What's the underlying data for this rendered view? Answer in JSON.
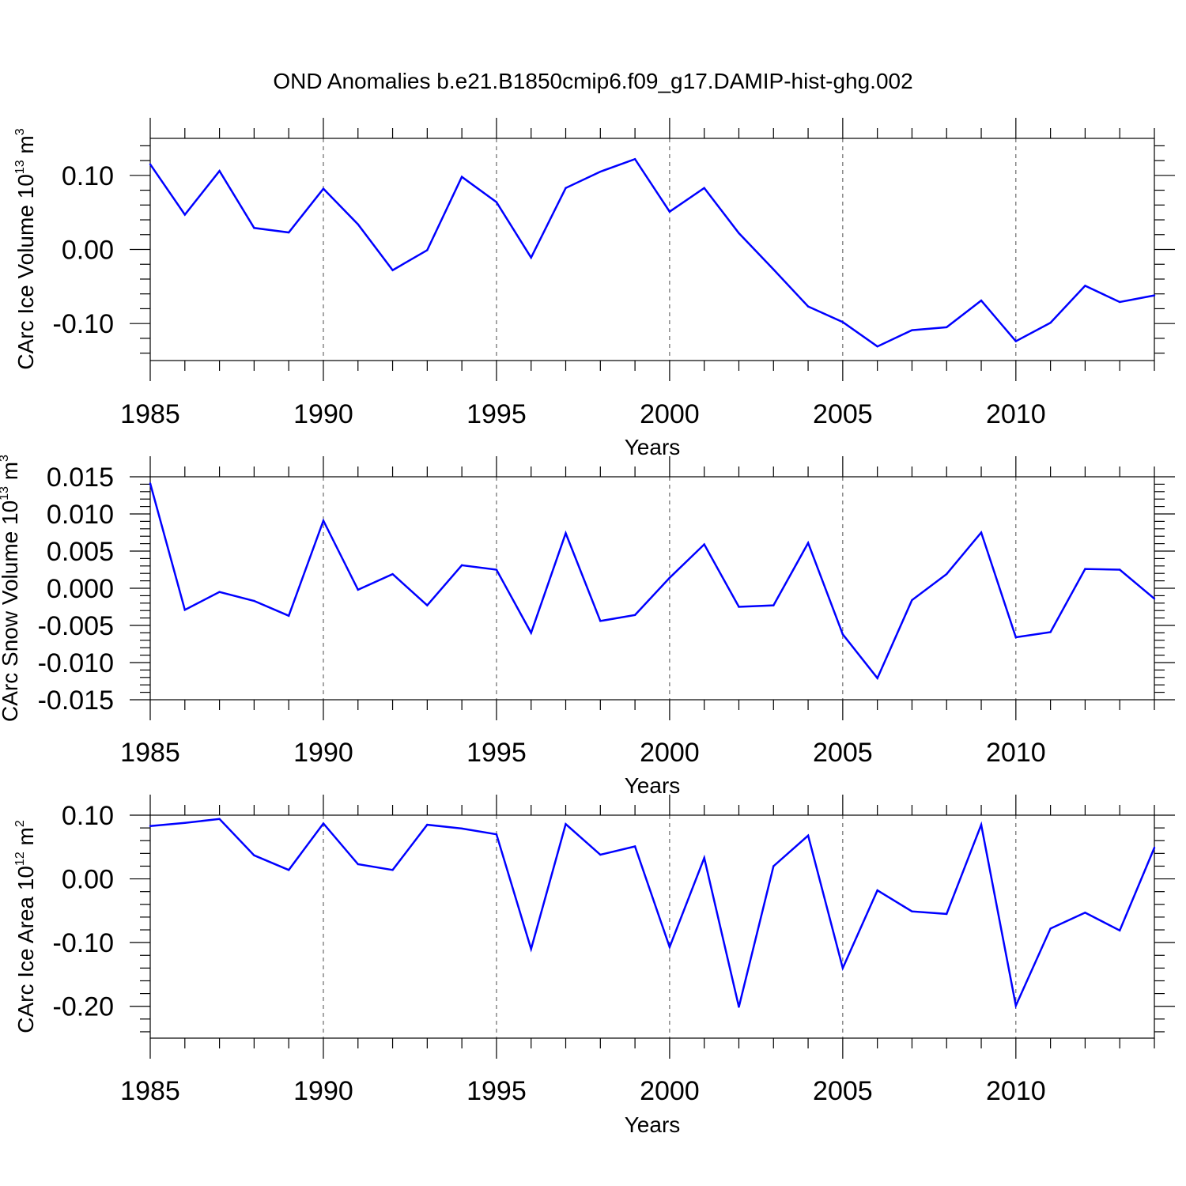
{
  "title": "OND Anomalies b.e21.B1850cmip6.f09_g17.DAMIP-hist-ghg.002",
  "colors": {
    "line": "#0000ff",
    "axis": "#000000",
    "grid": "#000000"
  },
  "chart_data": [
    {
      "type": "line",
      "ylabel_main": "CArc Ice Volume 10",
      "ylabel_exp": "13",
      "ylabel_unit": " m",
      "ylabel_unit_exp": "3",
      "xlabel": "Years",
      "xlim": [
        1985,
        2014
      ],
      "ylim": [
        -0.15,
        0.15
      ],
      "yticks": [
        -0.1,
        0.0,
        0.1
      ],
      "ytick_labels": [
        "-0.10",
        "0.00",
        "0.10"
      ],
      "xticks": [
        1985,
        1990,
        1995,
        2000,
        2005,
        2010
      ],
      "xtick_labels": [
        "1985",
        "1990",
        "1995",
        "2000",
        "2005",
        "2010"
      ],
      "x": [
        1985,
        1986,
        1987,
        1988,
        1989,
        1990,
        1991,
        1992,
        1993,
        1994,
        1995,
        1996,
        1997,
        1998,
        1999,
        2000,
        2001,
        2002,
        2003,
        2004,
        2005,
        2006,
        2007,
        2008,
        2009,
        2010,
        2011,
        2012,
        2013,
        2014
      ],
      "series": [
        {
          "name": "CArc Ice Volume",
          "values": [
            0.115,
            0.047,
            0.106,
            0.029,
            0.023,
            0.082,
            0.034,
            -0.028,
            -0.001,
            0.098,
            0.064,
            -0.011,
            0.083,
            0.105,
            0.122,
            0.051,
            0.083,
            0.022,
            -0.027,
            -0.077,
            -0.098,
            -0.131,
            -0.109,
            -0.105,
            -0.069,
            -0.124,
            -0.099,
            -0.049,
            -0.071,
            -0.062
          ]
        }
      ]
    },
    {
      "type": "line",
      "ylabel_main": "CArc Snow Volume 10",
      "ylabel_exp": "13",
      "ylabel_unit": " m",
      "ylabel_unit_exp": "3",
      "xlabel": "Years",
      "xlim": [
        1985,
        2014
      ],
      "ylim": [
        -0.015,
        0.015
      ],
      "yticks": [
        -0.015,
        -0.01,
        -0.005,
        0.0,
        0.005,
        0.01,
        0.015
      ],
      "ytick_labels": [
        "-0.015",
        "-0.010",
        "-0.005",
        "0.000",
        "0.005",
        "0.010",
        "0.015"
      ],
      "xticks": [
        1985,
        1990,
        1995,
        2000,
        2005,
        2010
      ],
      "xtick_labels": [
        "1985",
        "1990",
        "1995",
        "2000",
        "2005",
        "2010"
      ],
      "x": [
        1985,
        1986,
        1987,
        1988,
        1989,
        1990,
        1991,
        1992,
        1993,
        1994,
        1995,
        1996,
        1997,
        1998,
        1999,
        2000,
        2001,
        2002,
        2003,
        2004,
        2005,
        2006,
        2007,
        2008,
        2009,
        2010,
        2011,
        2012,
        2013,
        2014
      ],
      "series": [
        {
          "name": "CArc Snow Volume",
          "values": [
            0.0141,
            -0.0029,
            -0.0005,
            -0.0017,
            -0.0037,
            0.0091,
            -0.0002,
            0.0019,
            -0.0023,
            0.0031,
            0.0025,
            -0.006,
            0.0074,
            -0.0044,
            -0.0036,
            0.0014,
            0.0059,
            -0.0025,
            -0.0023,
            0.0061,
            -0.0062,
            -0.0121,
            -0.0016,
            0.0019,
            0.0075,
            -0.0066,
            -0.0059,
            0.0026,
            0.0025,
            -0.0014
          ]
        }
      ]
    },
    {
      "type": "line",
      "ylabel_main": "CArc Ice Area 10",
      "ylabel_exp": "12",
      "ylabel_unit": " m",
      "ylabel_unit_exp": "2",
      "xlabel": "Years",
      "xlim": [
        1985,
        2014
      ],
      "ylim": [
        -0.25,
        0.1
      ],
      "yticks": [
        -0.2,
        -0.1,
        0.0,
        0.1
      ],
      "ytick_labels": [
        "-0.20",
        "-0.10",
        "0.00",
        "0.10"
      ],
      "xticks": [
        1985,
        1990,
        1995,
        2000,
        2005,
        2010
      ],
      "xtick_labels": [
        "1985",
        "1990",
        "1995",
        "2000",
        "2005",
        "2010"
      ],
      "x": [
        1985,
        1986,
        1987,
        1988,
        1989,
        1990,
        1991,
        1992,
        1993,
        1994,
        1995,
        1996,
        1997,
        1998,
        1999,
        2000,
        2001,
        2002,
        2003,
        2004,
        2005,
        2006,
        2007,
        2008,
        2009,
        2010,
        2011,
        2012,
        2013,
        2014
      ],
      "series": [
        {
          "name": "CArc Ice Area",
          "values": [
            0.083,
            0.088,
            0.094,
            0.037,
            0.014,
            0.087,
            0.023,
            0.014,
            0.085,
            0.079,
            0.07,
            -0.11,
            0.086,
            0.038,
            0.051,
            -0.107,
            0.033,
            -0.201,
            0.02,
            0.068,
            -0.14,
            -0.018,
            -0.051,
            -0.055,
            0.085,
            -0.199,
            -0.078,
            -0.053,
            -0.081,
            0.049
          ]
        }
      ]
    }
  ]
}
